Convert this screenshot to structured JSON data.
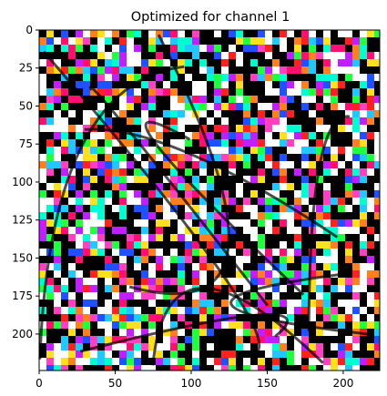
{
  "title": "Optimized for channel 1",
  "image": {
    "description_type": "feature-visualization",
    "width_units": 224,
    "height_units": 224,
    "palette": [
      "#000000",
      "#ffffff",
      "#ff2020",
      "#20c8ff",
      "#ffe020",
      "#ff40c0",
      "#20ff40",
      "#2050ff",
      "#ff8020",
      "#c020ff",
      "#00ffd0",
      "#ff1070"
    ]
  },
  "axes": {
    "x_ticks": [
      0,
      50,
      100,
      150,
      200
    ],
    "y_ticks": [
      0,
      25,
      50,
      75,
      100,
      125,
      150,
      175,
      200
    ],
    "xlim": [
      0,
      224
    ],
    "ylim": [
      224,
      0
    ]
  }
}
